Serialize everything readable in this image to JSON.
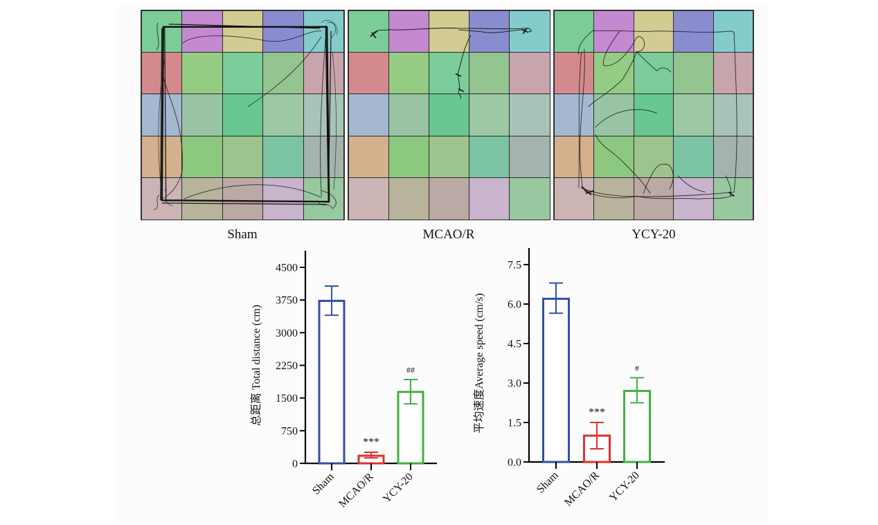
{
  "arena_panels": [
    {
      "id": "sham",
      "label": "Sham"
    },
    {
      "id": "mcao",
      "label": "MCAO/R"
    },
    {
      "id": "ycy",
      "label": "YCY-20"
    }
  ],
  "arena_cell_colors": [
    [
      "#7ccc98",
      "#c48ad0",
      "#d2cc92",
      "#8a8cd0",
      "#84cccc"
    ],
    [
      "#d48a8c",
      "#94cc84",
      "#7ccc9c",
      "#94c490",
      "#c8a4ac"
    ],
    [
      "#a4b8d0",
      "#98c4a4",
      "#68c890",
      "#9cc8a4",
      "#a8c4b8"
    ],
    [
      "#d4b08c",
      "#8cc880",
      "#9cc48c",
      "#7cc4a4",
      "#a4b4ac"
    ],
    [
      "#ccb4b4",
      "#b8b49c",
      "#bca8a4",
      "#c8b4cc",
      "#98c8a0"
    ]
  ],
  "chart_data": [
    {
      "type": "bar",
      "title": "",
      "xlabel": "",
      "ylabel": "总距离 Total distance (cm)",
      "categories": [
        "Sham",
        "MCAO/R",
        "YCY-20"
      ],
      "values": [
        3730,
        175,
        1640
      ],
      "error_upper": [
        4070,
        255,
        1925
      ],
      "error_lower": [
        3400,
        125,
        1365
      ],
      "annotations": [
        "",
        "***",
        "##"
      ],
      "colors": [
        "#3050a8",
        "#e03030",
        "#40b040"
      ],
      "ylim": [
        0,
        4500
      ],
      "yticks": [
        0,
        750,
        1500,
        2250,
        3000,
        3750,
        4500
      ],
      "ytick_labels": [
        "0",
        "750",
        "1500",
        "2250",
        "3000",
        "3750",
        "4500"
      ],
      "grid": false,
      "legend": "none"
    },
    {
      "type": "bar",
      "title": "",
      "xlabel": "",
      "ylabel": "平均速度Average speed (cm/s)",
      "categories": [
        "Sham",
        "MCAO/R",
        "YCY-20"
      ],
      "values": [
        6.2,
        1.0,
        2.7
      ],
      "error_upper": [
        6.8,
        1.5,
        3.2
      ],
      "error_lower": [
        5.65,
        0.5,
        2.25
      ],
      "annotations": [
        "",
        "***",
        "#"
      ],
      "colors": [
        "#3050a8",
        "#e03030",
        "#40b040"
      ],
      "ylim": [
        0,
        7.5
      ],
      "yticks": [
        0,
        1.5,
        3.0,
        4.5,
        6.0,
        7.5
      ],
      "ytick_labels": [
        "0.0",
        "1.5",
        "3.0",
        "4.5",
        "6.0",
        "7.5"
      ],
      "grid": false,
      "legend": "none"
    }
  ]
}
